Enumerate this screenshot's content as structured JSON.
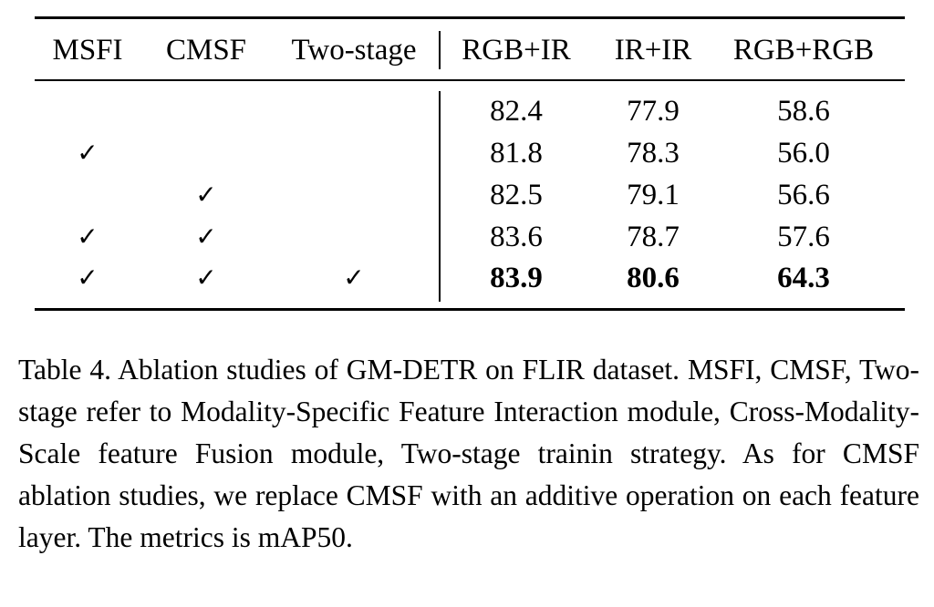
{
  "table": {
    "headers": [
      "MSFI",
      "CMSF",
      "Two-stage",
      "RGB+IR",
      "IR+IR",
      "RGB+RGB"
    ],
    "check_glyph": "✓",
    "rows": [
      {
        "msfi": false,
        "cmsf": false,
        "two_stage": false,
        "rgb_ir": "82.4",
        "ir_ir": "77.9",
        "rgb_rgb": "58.6"
      },
      {
        "msfi": true,
        "cmsf": false,
        "two_stage": false,
        "rgb_ir": "81.8",
        "ir_ir": "78.3",
        "rgb_rgb": "56.0"
      },
      {
        "msfi": false,
        "cmsf": true,
        "two_stage": false,
        "rgb_ir": "82.5",
        "ir_ir": "79.1",
        "rgb_rgb": "56.6"
      },
      {
        "msfi": true,
        "cmsf": true,
        "two_stage": false,
        "rgb_ir": "83.6",
        "ir_ir": "78.7",
        "rgb_rgb": "57.6"
      },
      {
        "msfi": true,
        "cmsf": true,
        "two_stage": true,
        "rgb_ir": "83.9",
        "ir_ir": "80.6",
        "rgb_rgb": "64.3",
        "bold": true
      }
    ]
  },
  "caption": "Table 4. Ablation studies of GM-DETR on FLIR dataset. MSFI, CMSF, Two-stage refer to Modality-Specific Feature Interaction module, Cross-Modality-Scale feature Fusion module, Two-stage trainin strategy. As for CMSF ablation studies, we replace CMSF with an additive operation on each feature layer. The metrics is mAP50."
}
